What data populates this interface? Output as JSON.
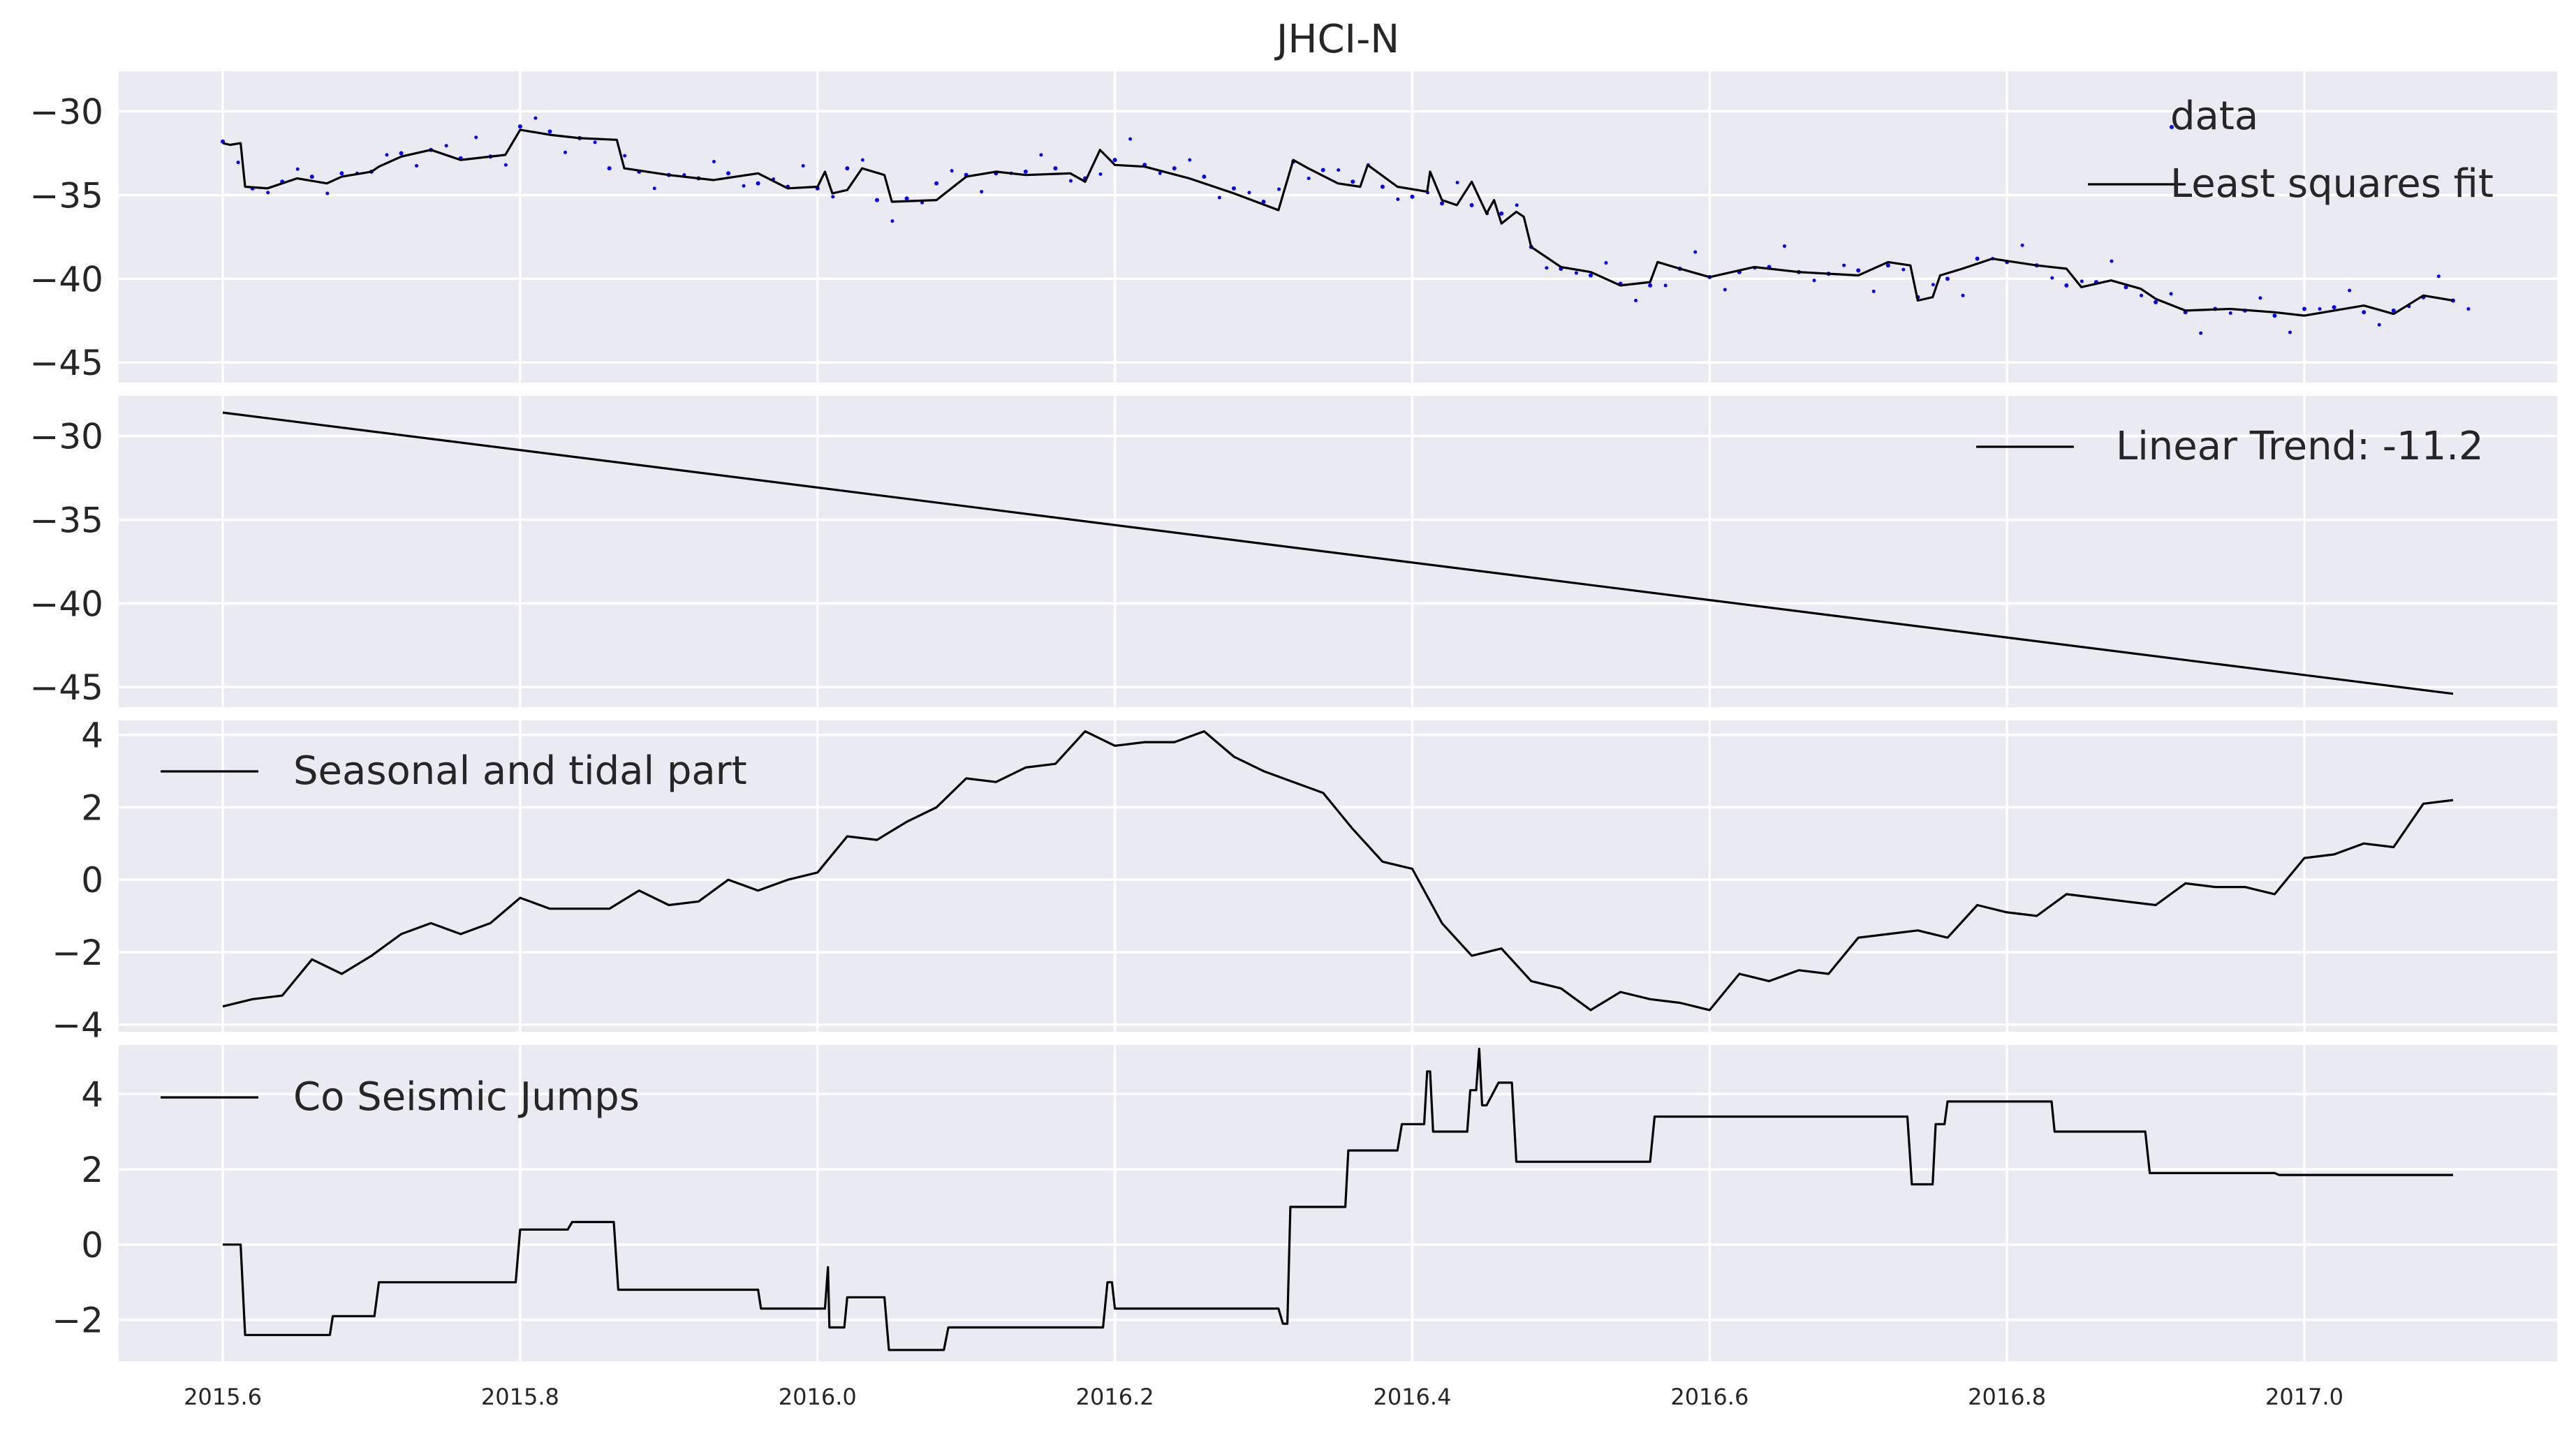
{
  "chart_data": {
    "title": "JHCI-N",
    "type": "line",
    "xlim": [
      2015.53,
      2017.17
    ],
    "x_ticks": [
      "2015.6",
      "2015.8",
      "2016.0",
      "2016.2",
      "2016.4",
      "2016.6",
      "2016.8",
      "2017.0"
    ],
    "x_tick_values": [
      2015.6,
      2015.8,
      2016.0,
      2016.2,
      2016.4,
      2016.6,
      2016.8,
      2017.0
    ],
    "grid": true,
    "panels": [
      {
        "type": "scatter+line",
        "ylim": [
          -46.2,
          -27.6
        ],
        "y_ticks": [
          "−30",
          "−35",
          "−40",
          "−45"
        ],
        "y_tick_values": [
          -30,
          -35,
          -40,
          -45
        ],
        "legend_position": "top-right",
        "series": [
          {
            "name": "data",
            "type": "scatter",
            "color": "#0000ff",
            "x": [
              2015.6,
              2015.62,
              2015.64,
              2015.66,
              2015.68,
              2015.7,
              2015.72,
              2015.74,
              2015.76,
              2015.78,
              2015.8,
              2015.82,
              2015.84,
              2015.86,
              2015.88,
              2015.9,
              2015.92,
              2015.94,
              2015.96,
              2015.98,
              2016.0,
              2016.02,
              2016.04,
              2016.06,
              2016.08,
              2016.1,
              2016.12,
              2016.14,
              2016.16,
              2016.18,
              2016.2,
              2016.22,
              2016.24,
              2016.26,
              2016.28,
              2016.3,
              2016.32,
              2016.34,
              2016.36,
              2016.38,
              2016.4,
              2016.42,
              2016.44,
              2016.46,
              2016.48,
              2016.5,
              2016.52,
              2016.54,
              2016.56,
              2016.58,
              2016.6,
              2016.62,
              2016.64,
              2016.66,
              2016.68,
              2016.7,
              2016.72,
              2016.74,
              2016.76,
              2016.78,
              2016.8,
              2016.82,
              2016.84,
              2016.86,
              2016.88,
              2016.9,
              2016.92,
              2016.94,
              2016.96,
              2016.98,
              2017.0,
              2017.02,
              2017.04,
              2017.06,
              2017.08,
              2017.1
            ],
            "y": [
              -31.8,
              -34.6,
              -34.2,
              -33.9,
              -33.7,
              -33.6,
              -32.5,
              -32.3,
              -32.8,
              -32.7,
              -30.9,
              -31.2,
              -31.6,
              -33.4,
              -33.6,
              -33.8,
              -34.0,
              -33.7,
              -34.3,
              -34.5,
              -34.6,
              -33.4,
              -35.3,
              -35.2,
              -34.3,
              -33.8,
              -33.7,
              -33.6,
              -33.4,
              -34.0,
              -32.9,
              -33.2,
              -33.4,
              -33.9,
              -34.6,
              -35.4,
              -33.0,
              -33.5,
              -34.2,
              -34.5,
              -35.1,
              -35.5,
              -35.6,
              -36.1,
              -38.1,
              -39.4,
              -39.8,
              -40.3,
              -40.4,
              -39.4,
              -39.9,
              -39.6,
              -39.3,
              -39.6,
              -39.7,
              -39.5,
              -39.2,
              -41.1,
              -40.0,
              -38.8,
              -39.0,
              -39.2,
              -40.4,
              -40.2,
              -40.5,
              -41.4,
              -42.0,
              -41.8,
              -41.9,
              -42.2,
              -41.8,
              -41.7,
              -42.0,
              -41.9,
              -41.1,
              -41.3
            ]
          },
          {
            "name": "Least squares fit",
            "type": "line",
            "color": "#000000",
            "x": [
              2015.6,
              2015.605,
              2015.612,
              2015.615,
              2015.63,
              2015.65,
              2015.67,
              2015.68,
              2015.7,
              2015.705,
              2015.72,
              2015.74,
              2015.76,
              2015.79,
              2015.8,
              2015.82,
              2015.84,
              2015.865,
              2015.87,
              2015.9,
              2015.93,
              2015.96,
              2015.98,
              2016.0,
              2016.005,
              2016.01,
              2016.02,
              2016.03,
              2016.045,
              2016.05,
              2016.08,
              2016.1,
              2016.12,
              2016.14,
              2016.17,
              2016.18,
              2016.19,
              2016.2,
              2016.22,
              2016.25,
              2016.28,
              2016.31,
              2016.32,
              2016.33,
              2016.35,
              2016.365,
              2016.37,
              2016.39,
              2016.41,
              2016.412,
              2016.42,
              2016.43,
              2016.44,
              2016.45,
              2016.455,
              2016.46,
              2016.47,
              2016.475,
              2016.48,
              2016.5,
              2016.52,
              2016.54,
              2016.56,
              2016.565,
              2016.58,
              2016.6,
              2016.63,
              2016.66,
              2016.7,
              2016.72,
              2016.735,
              2016.74,
              2016.75,
              2016.755,
              2016.77,
              2016.79,
              2016.82,
              2016.84,
              2016.85,
              2016.87,
              2016.89,
              2016.9,
              2016.92,
              2016.95,
              2016.98,
              2017.0,
              2017.04,
              2017.06,
              2017.08,
              2017.1
            ],
            "y": [
              -31.9,
              -32.0,
              -31.9,
              -34.5,
              -34.6,
              -34.0,
              -34.3,
              -33.9,
              -33.6,
              -33.3,
              -32.7,
              -32.3,
              -32.9,
              -32.6,
              -31.1,
              -31.4,
              -31.6,
              -31.7,
              -33.4,
              -33.8,
              -34.1,
              -33.7,
              -34.6,
              -34.5,
              -33.6,
              -34.9,
              -34.7,
              -33.4,
              -33.8,
              -35.4,
              -35.3,
              -33.9,
              -33.6,
              -33.8,
              -33.7,
              -34.2,
              -32.3,
              -33.2,
              -33.3,
              -34.0,
              -34.9,
              -35.9,
              -32.9,
              -33.4,
              -34.3,
              -34.5,
              -33.2,
              -34.5,
              -34.8,
              -33.6,
              -35.3,
              -35.6,
              -34.2,
              -36.1,
              -35.3,
              -36.7,
              -36.0,
              -36.3,
              -38.1,
              -39.3,
              -39.6,
              -40.4,
              -40.2,
              -39.0,
              -39.4,
              -39.9,
              -39.3,
              -39.6,
              -39.8,
              -39.0,
              -39.2,
              -41.3,
              -41.1,
              -39.8,
              -39.4,
              -38.8,
              -39.2,
              -39.4,
              -40.5,
              -40.1,
              -40.6,
              -41.2,
              -41.9,
              -41.8,
              -42.0,
              -42.2,
              -41.6,
              -42.1,
              -41.0,
              -41.3
            ]
          }
        ]
      },
      {
        "type": "line",
        "ylim": [
          -46.2,
          -27.6
        ],
        "y_ticks": [
          "−30",
          "−35",
          "−40",
          "−45"
        ],
        "y_tick_values": [
          -30,
          -35,
          -40,
          -45
        ],
        "legend_position": "top-right",
        "series": [
          {
            "name": "Linear Trend: -11.2",
            "type": "line",
            "color": "#000000",
            "x": [
              2015.6,
              2017.1
            ],
            "y": [
              -28.6,
              -45.4
            ]
          }
        ]
      },
      {
        "type": "line",
        "ylim": [
          -4.2,
          4.4
        ],
        "y_ticks": [
          "4",
          "2",
          "0",
          "−2",
          "−4"
        ],
        "y_tick_values": [
          4,
          2,
          0,
          -2,
          -4
        ],
        "legend_position": "top-left",
        "series": [
          {
            "name": "Seasonal and tidal part",
            "type": "line",
            "color": "#000000",
            "x": [
              2015.6,
              2015.62,
              2015.64,
              2015.66,
              2015.68,
              2015.7,
              2015.72,
              2015.74,
              2015.76,
              2015.78,
              2015.8,
              2015.82,
              2015.84,
              2015.86,
              2015.88,
              2015.9,
              2015.92,
              2015.94,
              2015.96,
              2015.98,
              2016.0,
              2016.02,
              2016.04,
              2016.06,
              2016.08,
              2016.1,
              2016.12,
              2016.14,
              2016.16,
              2016.18,
              2016.2,
              2016.22,
              2016.24,
              2016.26,
              2016.28,
              2016.3,
              2016.32,
              2016.34,
              2016.36,
              2016.38,
              2016.4,
              2016.42,
              2016.44,
              2016.46,
              2016.48,
              2016.5,
              2016.52,
              2016.54,
              2016.56,
              2016.58,
              2016.6,
              2016.62,
              2016.64,
              2016.66,
              2016.68,
              2016.7,
              2016.72,
              2016.74,
              2016.76,
              2016.78,
              2016.8,
              2016.82,
              2016.84,
              2016.86,
              2016.88,
              2016.9,
              2016.92,
              2016.94,
              2016.96,
              2016.98,
              2017.0,
              2017.02,
              2017.04,
              2017.06,
              2017.08,
              2017.1
            ],
            "y": [
              -3.5,
              -3.3,
              -3.2,
              -2.2,
              -2.6,
              -2.1,
              -1.5,
              -1.2,
              -1.5,
              -1.2,
              -0.5,
              -0.8,
              -0.8,
              -0.8,
              -0.3,
              -0.7,
              -0.6,
              0.0,
              -0.3,
              0.0,
              0.2,
              1.2,
              1.1,
              1.6,
              2.0,
              2.8,
              2.7,
              3.1,
              3.2,
              4.1,
              3.7,
              3.8,
              3.8,
              4.1,
              3.4,
              3.0,
              2.7,
              2.4,
              1.4,
              0.5,
              0.3,
              -1.2,
              -2.1,
              -1.9,
              -2.8,
              -3.0,
              -3.6,
              -3.1,
              -3.3,
              -3.4,
              -3.6,
              -2.6,
              -2.8,
              -2.5,
              -2.6,
              -1.6,
              -1.5,
              -1.4,
              -1.6,
              -0.7,
              -0.9,
              -1.0,
              -0.4,
              -0.5,
              -0.6,
              -0.7,
              -0.1,
              -0.2,
              -0.2,
              -0.4,
              0.6,
              0.7,
              1.0,
              0.9,
              2.1,
              2.2
            ]
          }
        ]
      },
      {
        "type": "line",
        "ylim": [
          -3.1,
          5.3
        ],
        "y_ticks": [
          "4",
          "2",
          "0",
          "−2"
        ],
        "y_tick_values": [
          4,
          2,
          0,
          -2
        ],
        "legend_position": "top-left",
        "series": [
          {
            "name": "Co Seismic Jumps",
            "type": "line",
            "color": "#000000",
            "x": [
              2015.6,
              2015.612,
              2015.615,
              2015.672,
              2015.674,
              2015.702,
              2015.705,
              2015.797,
              2015.8,
              2015.832,
              2015.835,
              2015.863,
              2015.866,
              2015.96,
              2015.962,
              2016.005,
              2016.007,
              2016.008,
              2016.012,
              2016.018,
              2016.02,
              2016.045,
              2016.048,
              2016.085,
              2016.088,
              2016.192,
              2016.195,
              2016.198,
              2016.2,
              2016.31,
              2016.313,
              2016.316,
              2016.318,
              2016.355,
              2016.357,
              2016.39,
              2016.393,
              2016.408,
              2016.41,
              2016.412,
              2016.414,
              2016.437,
              2016.439,
              2016.443,
              2016.445,
              2016.447,
              2016.45,
              2016.458,
              2016.46,
              2016.467,
              2016.47,
              2016.47,
              2016.472,
              2016.56,
              2016.563,
              2016.733,
              2016.736,
              2016.75,
              2016.752,
              2016.758,
              2016.76,
              2016.83,
              2016.832,
              2016.893,
              2016.896,
              2016.98,
              2016.983,
              2017.1
            ],
            "y": [
              0.0,
              0.0,
              -2.4,
              -2.4,
              -1.9,
              -1.9,
              -1.0,
              -1.0,
              0.4,
              0.4,
              0.6,
              0.6,
              -1.2,
              -1.2,
              -1.7,
              -1.7,
              -0.6,
              -2.2,
              -2.2,
              -2.2,
              -1.4,
              -1.4,
              -2.8,
              -2.8,
              -2.2,
              -2.2,
              -1.0,
              -1.0,
              -1.7,
              -1.7,
              -2.1,
              -2.1,
              1.0,
              1.0,
              2.5,
              2.5,
              3.2,
              3.2,
              4.6,
              4.6,
              3.0,
              3.0,
              4.1,
              4.1,
              5.2,
              3.7,
              3.7,
              4.3,
              4.3,
              4.3,
              2.2,
              2.2,
              2.2,
              2.2,
              3.4,
              3.4,
              1.6,
              1.6,
              3.2,
              3.2,
              3.8,
              3.8,
              3.0,
              3.0,
              1.9,
              1.9,
              1.85,
              1.85
            ]
          }
        ]
      }
    ]
  }
}
